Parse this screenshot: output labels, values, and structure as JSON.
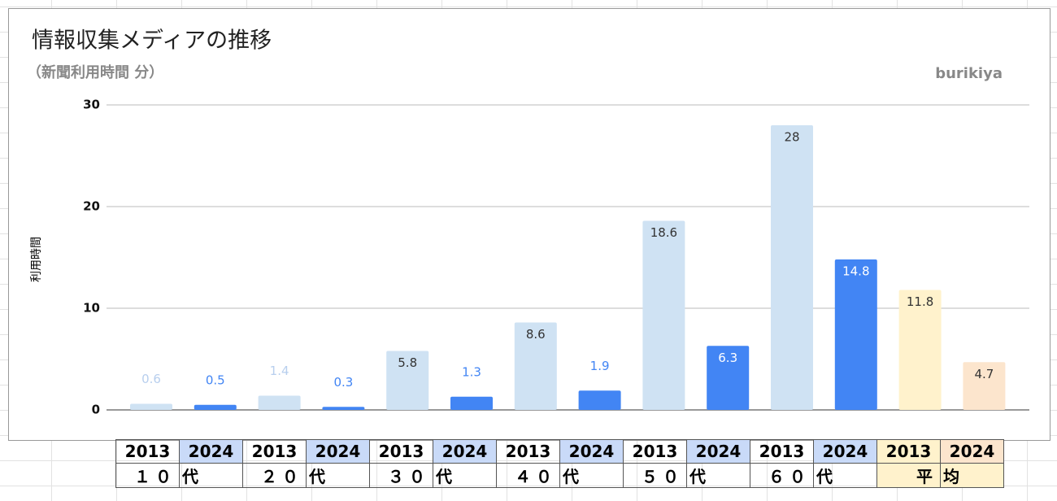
{
  "chart_data": {
    "type": "bar",
    "title": "情報収集メディアの推移",
    "subtitle": "（新聞利用時間 分）",
    "watermark": "burikiya",
    "y_label": "利用時間",
    "values": [
      0.6,
      0.5,
      1.4,
      0.3,
      5.8,
      1.3,
      8.6,
      1.9,
      18.6,
      6.3,
      28,
      14.8,
      11.8,
      4.7
    ],
    "colors": [
      "#cfe2f3",
      "#4285f4",
      "#cfe2f3",
      "#4285f4",
      "#cfe2f3",
      "#4285f4",
      "#cfe2f3",
      "#4285f4",
      "#cfe2f3",
      "#4285f4",
      "#cfe2f3",
      "#4285f4",
      "#fff2cc",
      "#fce5cd"
    ],
    "ylim": [
      0,
      30
    ],
    "yticks": [
      0,
      10,
      20,
      30
    ],
    "grid": true
  },
  "table": {
    "rows": [
      [
        "2013",
        "2024",
        "2013",
        "2024",
        "2013",
        "2024",
        "2013",
        "2024",
        "2013",
        "2024",
        "2013",
        "2024",
        "2013",
        "2024"
      ],
      [
        "１０",
        "代",
        "２０",
        "代",
        "３０",
        "代",
        "４０",
        "代",
        "５０",
        "代",
        "６０",
        "代",
        "平",
        "均"
      ]
    ]
  }
}
